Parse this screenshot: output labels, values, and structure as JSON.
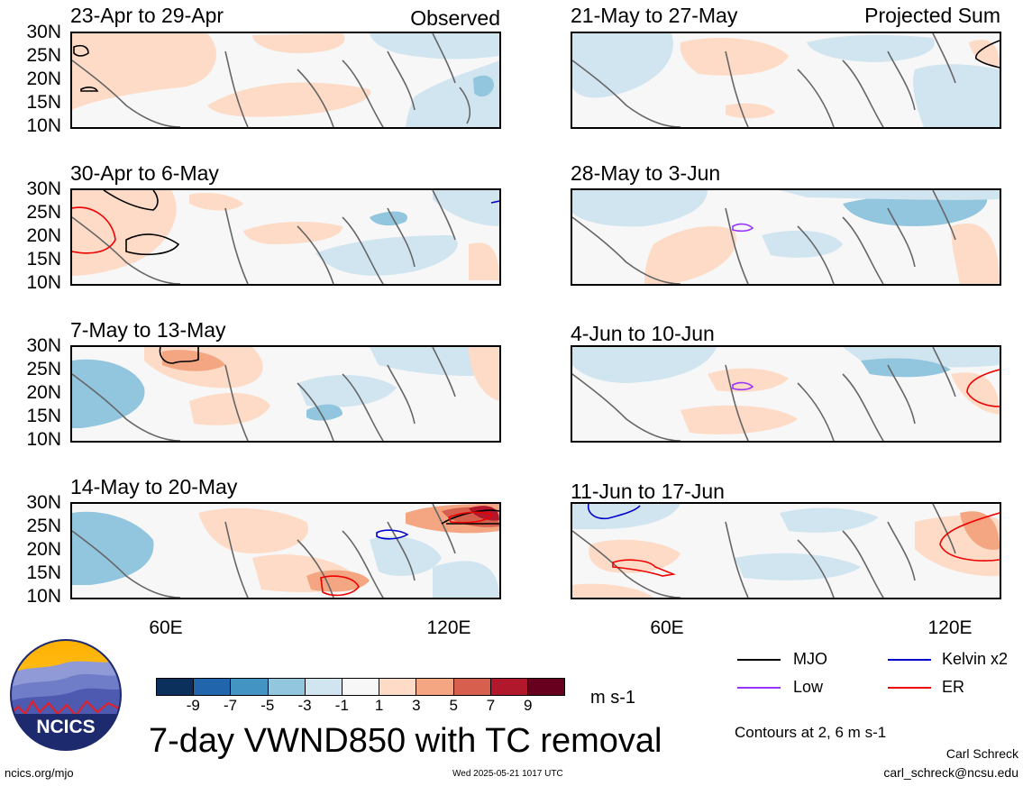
{
  "header": {
    "left_label": "Observed",
    "right_label": "Projected Sum"
  },
  "panels_left": [
    {
      "title": "23-Apr to 29-Apr"
    },
    {
      "title": "30-Apr to 6-May"
    },
    {
      "title": "7-May to 13-May"
    },
    {
      "title": "14-May to 20-May"
    }
  ],
  "panels_right": [
    {
      "title": "21-May to 27-May"
    },
    {
      "title": "28-May to 3-Jun"
    },
    {
      "title": "4-Jun to 10-Jun"
    },
    {
      "title": "11-Jun to 17-Jun"
    }
  ],
  "lat_labels": [
    "30N",
    "25N",
    "20N",
    "15N",
    "10N"
  ],
  "lon_labels": [
    "60E",
    "120E"
  ],
  "colorbar": {
    "colors": [
      "#0b305c",
      "#2166ac",
      "#4393c3",
      "#92c5de",
      "#d1e5f0",
      "#f7f7f7",
      "#fddbc7",
      "#f4a582",
      "#d6604d",
      "#b2182b",
      "#67001f"
    ],
    "labels": [
      "-9",
      "-7",
      "-5",
      "-3",
      "-1",
      "1",
      "3",
      "5",
      "7",
      "9"
    ],
    "units": "m s-1"
  },
  "legend": {
    "items": [
      {
        "label": "MJO",
        "color": "#000000"
      },
      {
        "label": "Kelvin x2",
        "color": "#0000cc"
      },
      {
        "label": "Low",
        "color": "#9933ff"
      },
      {
        "label": "ER",
        "color": "#ee0000"
      }
    ],
    "contours_note": "Contours at 2, 6 m s-1"
  },
  "title": "7-day VWND850 with TC removal",
  "logo_text": "NCICS",
  "footer": {
    "url": "ncics.org/mjo",
    "timestamp": "Wed 2025-05-21 1017 UTC",
    "author": "Carl Schreck",
    "email": "carl_schreck@ncsu.edu"
  }
}
